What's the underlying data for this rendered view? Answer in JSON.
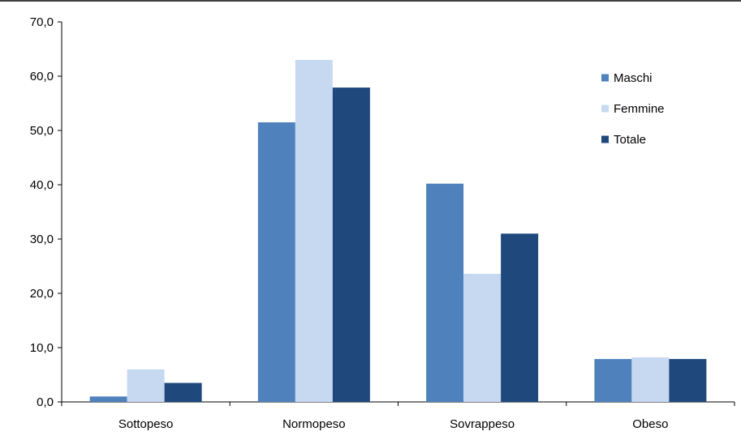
{
  "chart_data": {
    "type": "bar",
    "title": "",
    "xlabel": "",
    "ylabel": "",
    "categories": [
      "Sottopeso",
      "Normopeso",
      "Sovrappeso",
      "Obeso"
    ],
    "series": [
      {
        "name": "Maschi",
        "color": "#4F81BD",
        "values": [
          1.0,
          51.5,
          40.2,
          7.9
        ]
      },
      {
        "name": "Femmine",
        "color": "#C6D9F1",
        "values": [
          6.0,
          63.0,
          23.6,
          8.2
        ]
      },
      {
        "name": "Totale",
        "color": "#1F497D",
        "values": [
          3.5,
          57.9,
          31.0,
          7.9
        ]
      }
    ],
    "ylim": [
      0,
      70
    ],
    "yticks": [
      "0,0",
      "10,0",
      "20,0",
      "30,0",
      "40,0",
      "50,0",
      "60,0",
      "70,0"
    ],
    "grid": false,
    "legend_position": "top-right"
  }
}
